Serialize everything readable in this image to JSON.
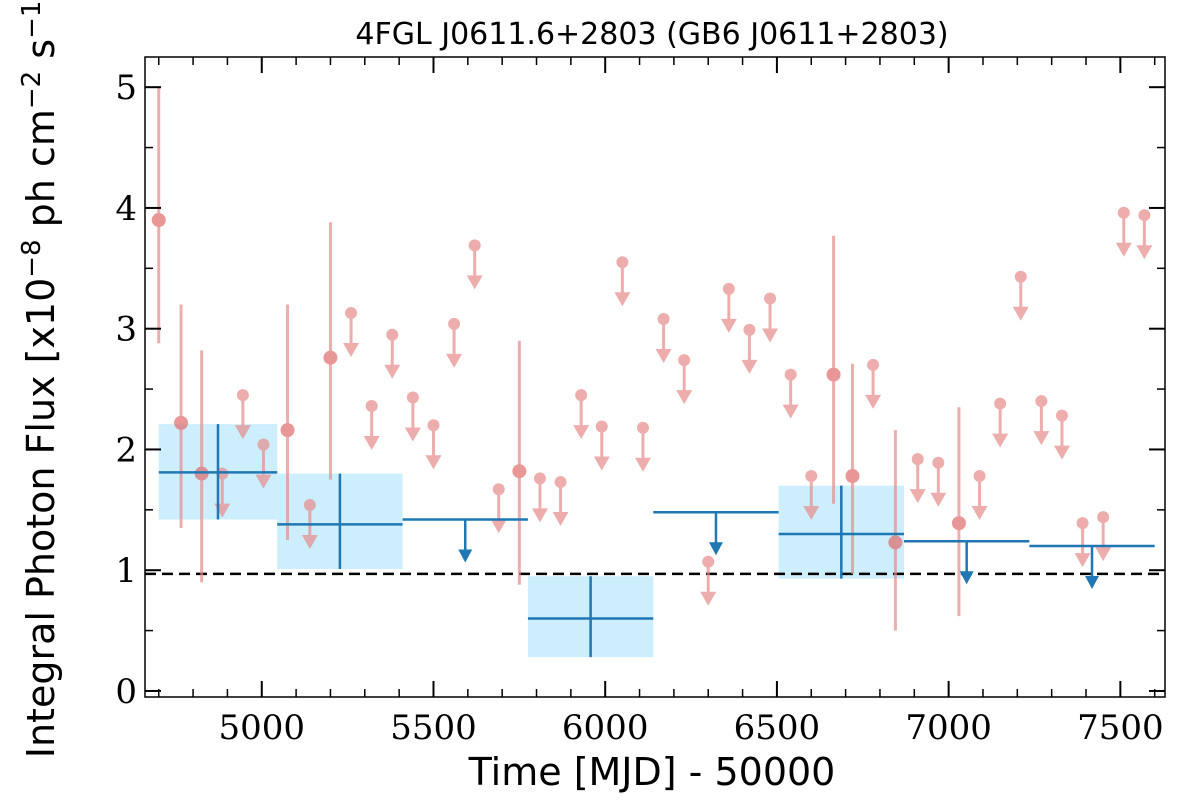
{
  "chart_data": {
    "type": "scatter",
    "title": "4FGL J0611.6+2803 (GB6 J0611+2803)",
    "xlabel": "Time [MJD] - 50000",
    "ylabel": "Integral Photon Flux [x10",
    "ylabel_exp1": "−8",
    "ylabel_mid": " ph cm",
    "ylabel_exp2": "−2",
    "ylabel_mid2": " s",
    "ylabel_exp3": "−1",
    "ylabel_end": "]",
    "xlim": [
      4660,
      7630
    ],
    "ylim": [
      -0.05,
      5.25
    ],
    "xticks": [
      5000,
      5500,
      6000,
      6500,
      7000,
      7500
    ],
    "yticks": [
      0,
      1,
      2,
      3,
      4,
      5
    ],
    "reference_level": 0.97,
    "colors": {
      "short_bins": "#e88b8b",
      "long_bins": "#1f77b4",
      "long_bins_band": "#cdeefc",
      "reference_line": "#000000"
    },
    "short_bins": [
      {
        "x": 4700,
        "y": 3.9,
        "lo": 2.88,
        "hi": 5.0
      },
      {
        "x": 4765,
        "y": 2.22,
        "lo": 1.35,
        "hi": 3.2
      },
      {
        "x": 4825,
        "y": 1.8,
        "lo": 0.9,
        "hi": 2.82
      },
      {
        "x": 4885,
        "y": 1.8,
        "ul": true
      },
      {
        "x": 4945,
        "y": 2.45,
        "ul": true
      },
      {
        "x": 5005,
        "y": 2.04,
        "ul": true
      },
      {
        "x": 5075,
        "y": 2.16,
        "lo": 1.25,
        "hi": 3.2
      },
      {
        "x": 5140,
        "y": 1.54,
        "ul": true
      },
      {
        "x": 5200,
        "y": 2.76,
        "lo": 1.75,
        "hi": 3.88
      },
      {
        "x": 5260,
        "y": 3.13,
        "ul": true
      },
      {
        "x": 5320,
        "y": 2.36,
        "ul": true
      },
      {
        "x": 5380,
        "y": 2.95,
        "ul": true
      },
      {
        "x": 5440,
        "y": 2.43,
        "ul": true
      },
      {
        "x": 5500,
        "y": 2.2,
        "ul": true
      },
      {
        "x": 5560,
        "y": 3.04,
        "ul": true
      },
      {
        "x": 5620,
        "y": 3.69,
        "ul": true
      },
      {
        "x": 5690,
        "y": 1.67,
        "ul": true
      },
      {
        "x": 5750,
        "y": 1.82,
        "lo": 0.88,
        "hi": 2.9
      },
      {
        "x": 5810,
        "y": 1.76,
        "ul": true
      },
      {
        "x": 5870,
        "y": 1.73,
        "ul": true
      },
      {
        "x": 5930,
        "y": 2.45,
        "ul": true
      },
      {
        "x": 5990,
        "y": 2.19,
        "ul": true
      },
      {
        "x": 6050,
        "y": 3.55,
        "ul": true
      },
      {
        "x": 6110,
        "y": 2.18,
        "ul": true
      },
      {
        "x": 6170,
        "y": 3.08,
        "ul": true
      },
      {
        "x": 6230,
        "y": 2.74,
        "ul": true
      },
      {
        "x": 6300,
        "y": 1.07,
        "ul": true
      },
      {
        "x": 6360,
        "y": 3.33,
        "ul": true
      },
      {
        "x": 6420,
        "y": 2.99,
        "ul": true
      },
      {
        "x": 6480,
        "y": 3.25,
        "ul": true
      },
      {
        "x": 6540,
        "y": 2.62,
        "ul": true
      },
      {
        "x": 6600,
        "y": 1.78,
        "ul": true
      },
      {
        "x": 6665,
        "y": 2.62,
        "lo": 1.55,
        "hi": 3.77
      },
      {
        "x": 6720,
        "y": 1.78,
        "lo": 0.97,
        "hi": 2.71
      },
      {
        "x": 6780,
        "y": 2.7,
        "ul": true
      },
      {
        "x": 6845,
        "y": 1.23,
        "lo": 0.5,
        "hi": 2.16
      },
      {
        "x": 6910,
        "y": 1.92,
        "ul": true
      },
      {
        "x": 6970,
        "y": 1.89,
        "ul": true
      },
      {
        "x": 7030,
        "y": 1.39,
        "lo": 0.62,
        "hi": 2.35
      },
      {
        "x": 7090,
        "y": 1.78,
        "ul": true
      },
      {
        "x": 7150,
        "y": 2.38,
        "ul": true
      },
      {
        "x": 7210,
        "y": 3.43,
        "ul": true
      },
      {
        "x": 7270,
        "y": 2.4,
        "ul": true
      },
      {
        "x": 7330,
        "y": 2.28,
        "ul": true
      },
      {
        "x": 7390,
        "y": 1.39,
        "ul": true
      },
      {
        "x": 7450,
        "y": 1.44,
        "ul": true
      },
      {
        "x": 7510,
        "y": 3.96,
        "ul": true
      },
      {
        "x": 7570,
        "y": 3.94,
        "ul": true
      }
    ],
    "long_bins": [
      {
        "x0": 4700,
        "x1": 5045,
        "y": 1.81,
        "lo": 1.42,
        "hi": 2.21
      },
      {
        "x0": 5045,
        "x1": 5410,
        "y": 1.38,
        "lo": 1.01,
        "hi": 1.8
      },
      {
        "x0": 5410,
        "x1": 5775,
        "y": 1.42,
        "ul": true
      },
      {
        "x0": 5775,
        "x1": 6140,
        "y": 0.6,
        "lo": 0.28,
        "hi": 0.95
      },
      {
        "x0": 6140,
        "x1": 6505,
        "y": 1.48,
        "ul": true
      },
      {
        "x0": 6505,
        "x1": 6870,
        "y": 1.3,
        "lo": 0.93,
        "hi": 1.7
      },
      {
        "x0": 6870,
        "x1": 7235,
        "y": 1.24,
        "ul": true
      },
      {
        "x0": 7235,
        "x1": 7600,
        "y": 1.2,
        "ul": true
      }
    ]
  }
}
